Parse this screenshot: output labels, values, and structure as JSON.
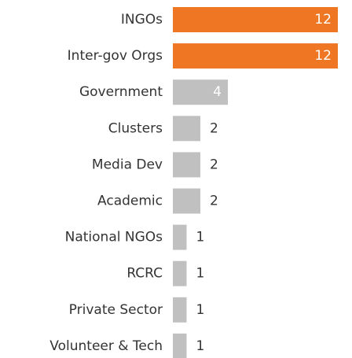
{
  "chart_data": {
    "type": "bar",
    "orientation": "horizontal",
    "categories": [
      "INGOs",
      "Inter-gov Orgs",
      "Government",
      "Clusters",
      "Media Dev",
      "Academic",
      "National NGOs",
      "RCRC",
      "Private Sector",
      "Volunteer & Tech"
    ],
    "values": [
      12,
      12,
      4,
      2,
      2,
      2,
      1,
      1,
      1,
      1
    ],
    "colors": [
      "#ef7622",
      "#ef7622",
      "#c0c0c0",
      "#c0c0c0",
      "#c0c0c0",
      "#c0c0c0",
      "#c0c0c0",
      "#c0c0c0",
      "#c0c0c0",
      "#c0c0c0"
    ]
  }
}
